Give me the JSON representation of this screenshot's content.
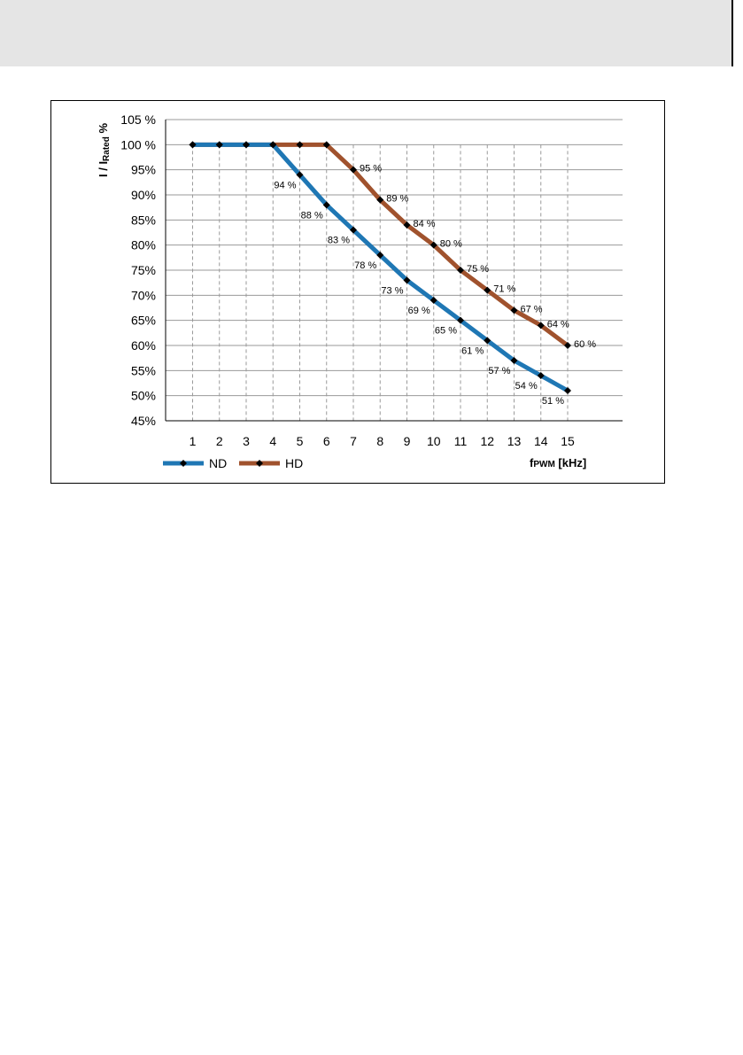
{
  "chart_data": {
    "type": "line",
    "x": [
      1,
      2,
      3,
      4,
      5,
      6,
      7,
      8,
      9,
      10,
      11,
      12,
      13,
      14,
      15
    ],
    "x_tick_labels": [
      "1",
      "2",
      "3",
      "4",
      "5",
      "6",
      "7",
      "8",
      "9",
      "10",
      "11",
      "12",
      "13",
      "14",
      "15"
    ],
    "y_tick_labels": [
      "105 %",
      "100 %",
      "95%",
      "90%",
      "85%",
      "80%",
      "75%",
      "70%",
      "65%",
      "60%",
      "55%",
      "50%",
      "45%"
    ],
    "y_ticks": [
      105,
      100,
      95,
      90,
      85,
      80,
      75,
      70,
      65,
      60,
      55,
      50,
      45
    ],
    "ylim": [
      45,
      105
    ],
    "xlim": [
      0,
      16
    ],
    "ylabel_main": "I / I",
    "ylabel_sub": "Rated",
    "ylabel_unit": " %",
    "xlabel_main": "f",
    "xlabel_sub": "PWM",
    "xlabel_unit": " [kHz]",
    "grid": "vertical-dashed-and-horizontal",
    "legend_position": "bottom-left",
    "series": [
      {
        "name": "ND",
        "color": "#1f77b4",
        "values": [
          100,
          100,
          100,
          100,
          94,
          88,
          83,
          78,
          73,
          69,
          65,
          61,
          57,
          54,
          51
        ],
        "labels": [
          "",
          "",
          "",
          "",
          "94 %",
          "88 %",
          "83 %",
          "78 %",
          "73 %",
          "69 %",
          "65 %",
          "61 %",
          "57 %",
          "54 %",
          "51 %"
        ]
      },
      {
        "name": "HD",
        "color": "#a0522d",
        "values": [
          100,
          100,
          100,
          100,
          100,
          100,
          95,
          89,
          84,
          80,
          75,
          71,
          67,
          64,
          60
        ],
        "labels": [
          "",
          "",
          "",
          "",
          "",
          "",
          "95 %",
          "89 %",
          "84 %",
          "80 %",
          "75 %",
          "71 %",
          "67 %",
          "64 %",
          "60 %"
        ]
      }
    ]
  }
}
